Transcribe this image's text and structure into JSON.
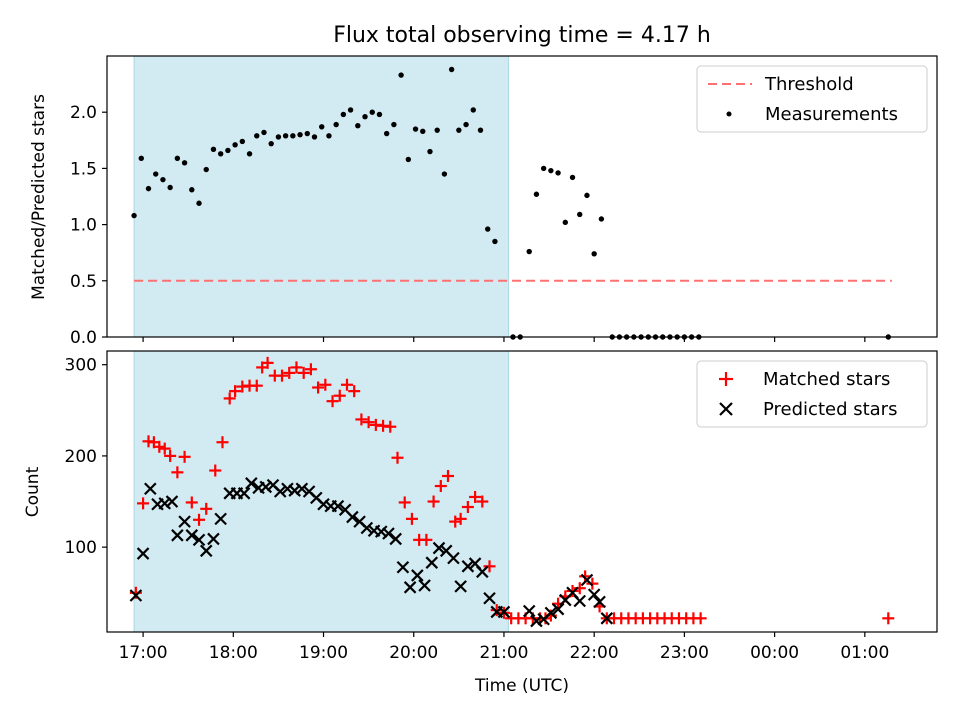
{
  "figure": {
    "title": "Flux total observing time = 4.17 h",
    "xlabel": "Time (UTC)"
  },
  "chart_data": [
    {
      "type": "scatter",
      "ylabel": "Matched/Predicted stars",
      "x_ticks": [
        "17:00",
        "18:00",
        "19:00",
        "20:00",
        "21:00",
        "22:00",
        "23:00",
        "00:00",
        "01:00"
      ],
      "y_ticks": [
        "0.0",
        "0.5",
        "1.0",
        "1.5",
        "2.0"
      ],
      "xlim": [
        16.6,
        25.8
      ],
      "ylim": [
        0,
        2.5
      ],
      "shaded_region": [
        16.9,
        21.05
      ],
      "colors": {
        "threshold": "#ff7070",
        "measurements": "#000000",
        "shade": "#add8e6"
      },
      "legend": {
        "position": "top-right",
        "entries": [
          "Threshold",
          "Measurements"
        ]
      },
      "threshold": {
        "name": "Threshold",
        "value": 0.5,
        "x_range": [
          16.9,
          25.3
        ]
      },
      "series": [
        {
          "name": "Measurements",
          "points": [
            [
              16.9,
              1.08
            ],
            [
              16.98,
              1.59
            ],
            [
              17.06,
              1.32
            ],
            [
              17.14,
              1.45
            ],
            [
              17.22,
              1.4
            ],
            [
              17.3,
              1.33
            ],
            [
              17.38,
              1.59
            ],
            [
              17.46,
              1.55
            ],
            [
              17.54,
              1.31
            ],
            [
              17.62,
              1.19
            ],
            [
              17.7,
              1.49
            ],
            [
              17.78,
              1.67
            ],
            [
              17.86,
              1.63
            ],
            [
              17.94,
              1.66
            ],
            [
              18.02,
              1.71
            ],
            [
              18.1,
              1.74
            ],
            [
              18.18,
              1.63
            ],
            [
              18.26,
              1.79
            ],
            [
              18.34,
              1.82
            ],
            [
              18.42,
              1.72
            ],
            [
              18.5,
              1.78
            ],
            [
              18.58,
              1.79
            ],
            [
              18.66,
              1.79
            ],
            [
              18.74,
              1.8
            ],
            [
              18.82,
              1.81
            ],
            [
              18.9,
              1.78
            ],
            [
              18.98,
              1.87
            ],
            [
              19.06,
              1.79
            ],
            [
              19.14,
              1.89
            ],
            [
              19.22,
              1.98
            ],
            [
              19.3,
              2.02
            ],
            [
              19.38,
              1.88
            ],
            [
              19.46,
              1.96
            ],
            [
              19.54,
              2.0
            ],
            [
              19.62,
              1.98
            ],
            [
              19.7,
              1.81
            ],
            [
              19.78,
              1.89
            ],
            [
              19.86,
              2.33
            ],
            [
              19.94,
              1.58
            ],
            [
              20.02,
              1.85
            ],
            [
              20.1,
              1.83
            ],
            [
              20.18,
              1.65
            ],
            [
              20.26,
              1.84
            ],
            [
              20.34,
              1.45
            ],
            [
              20.42,
              2.38
            ],
            [
              20.5,
              1.84
            ],
            [
              20.58,
              1.89
            ],
            [
              20.66,
              2.02
            ],
            [
              20.74,
              1.84
            ],
            [
              20.82,
              0.96
            ],
            [
              20.9,
              0.85
            ],
            [
              21.1,
              0.0
            ],
            [
              21.18,
              0.0
            ],
            [
              21.28,
              0.76
            ],
            [
              21.36,
              1.27
            ],
            [
              21.44,
              1.5
            ],
            [
              21.52,
              1.48
            ],
            [
              21.6,
              1.46
            ],
            [
              21.68,
              1.02
            ],
            [
              21.76,
              1.42
            ],
            [
              21.84,
              1.09
            ],
            [
              21.92,
              1.26
            ],
            [
              22.0,
              0.74
            ],
            [
              22.08,
              1.05
            ],
            [
              22.2,
              0.0
            ],
            [
              22.28,
              0.0
            ],
            [
              22.36,
              0.0
            ],
            [
              22.44,
              0.0
            ],
            [
              22.52,
              0.0
            ],
            [
              22.6,
              0.0
            ],
            [
              22.68,
              0.0
            ],
            [
              22.76,
              0.0
            ],
            [
              22.84,
              0.0
            ],
            [
              22.92,
              0.0
            ],
            [
              23.0,
              0.0
            ],
            [
              23.08,
              0.0
            ],
            [
              23.16,
              0.0
            ],
            [
              25.26,
              0.0
            ]
          ]
        }
      ]
    },
    {
      "type": "scatter",
      "ylabel": "Count",
      "x_ticks": [
        "17:00",
        "18:00",
        "19:00",
        "20:00",
        "21:00",
        "22:00",
        "23:00",
        "00:00",
        "01:00"
      ],
      "y_ticks": [
        "100",
        "200",
        "300"
      ],
      "xlim": [
        16.6,
        25.8
      ],
      "ylim": [
        7,
        315
      ],
      "shaded_region": [
        16.9,
        21.05
      ],
      "colors": {
        "matched": "#ff0000",
        "predicted": "#000000",
        "shade": "#add8e6"
      },
      "legend": {
        "position": "top-right",
        "entries": [
          "Matched stars",
          "Predicted stars"
        ]
      },
      "series": [
        {
          "name": "Matched stars",
          "marker": "plus",
          "points": [
            [
              16.92,
              50
            ],
            [
              17.0,
              148
            ],
            [
              17.06,
              216
            ],
            [
              17.12,
              215
            ],
            [
              17.18,
              210
            ],
            [
              17.24,
              208
            ],
            [
              17.3,
              200
            ],
            [
              17.38,
              182
            ],
            [
              17.46,
              199
            ],
            [
              17.54,
              149
            ],
            [
              17.62,
              130
            ],
            [
              17.7,
              142
            ],
            [
              17.8,
              184
            ],
            [
              17.88,
              215
            ],
            [
              17.96,
              263
            ],
            [
              18.02,
              271
            ],
            [
              18.1,
              276
            ],
            [
              18.18,
              277
            ],
            [
              18.26,
              277
            ],
            [
              18.32,
              297
            ],
            [
              18.38,
              302
            ],
            [
              18.46,
              288
            ],
            [
              18.54,
              288
            ],
            [
              18.62,
              291
            ],
            [
              18.7,
              297
            ],
            [
              18.78,
              291
            ],
            [
              18.86,
              295
            ],
            [
              18.94,
              275
            ],
            [
              19.02,
              278
            ],
            [
              19.1,
              260
            ],
            [
              19.18,
              266
            ],
            [
              19.26,
              278
            ],
            [
              19.34,
              271
            ],
            [
              19.42,
              240
            ],
            [
              19.5,
              237
            ],
            [
              19.58,
              234
            ],
            [
              19.66,
              233
            ],
            [
              19.74,
              232
            ],
            [
              19.82,
              198
            ],
            [
              19.9,
              149
            ],
            [
              19.98,
              131
            ],
            [
              20.06,
              108
            ],
            [
              20.14,
              108
            ],
            [
              20.22,
              150
            ],
            [
              20.3,
              167
            ],
            [
              20.38,
              178
            ],
            [
              20.46,
              128
            ],
            [
              20.52,
              131
            ],
            [
              20.6,
              144
            ],
            [
              20.68,
              155
            ],
            [
              20.76,
              150
            ],
            [
              20.84,
              79
            ],
            [
              20.92,
              31
            ],
            [
              21.0,
              28
            ],
            [
              21.08,
              22
            ],
            [
              21.16,
              22
            ],
            [
              21.24,
              22
            ],
            [
              21.32,
              22
            ],
            [
              21.4,
              22
            ],
            [
              21.46,
              22
            ],
            [
              21.52,
              25
            ],
            [
              21.6,
              38
            ],
            [
              21.68,
              46
            ],
            [
              21.76,
              52
            ],
            [
              21.84,
              55
            ],
            [
              21.9,
              68
            ],
            [
              21.98,
              60
            ],
            [
              22.06,
              35
            ],
            [
              22.14,
              22
            ],
            [
              22.22,
              22
            ],
            [
              22.3,
              22
            ],
            [
              22.38,
              22
            ],
            [
              22.46,
              22
            ],
            [
              22.54,
              22
            ],
            [
              22.62,
              22
            ],
            [
              22.7,
              22
            ],
            [
              22.78,
              22
            ],
            [
              22.86,
              22
            ],
            [
              22.94,
              22
            ],
            [
              23.02,
              22
            ],
            [
              23.1,
              22
            ],
            [
              23.18,
              22
            ],
            [
              25.26,
              22
            ]
          ]
        },
        {
          "name": "Predicted stars",
          "marker": "x",
          "points": [
            [
              16.92,
              47
            ],
            [
              17.0,
              93
            ],
            [
              17.08,
              164
            ],
            [
              17.16,
              147
            ],
            [
              17.24,
              148
            ],
            [
              17.32,
              150
            ],
            [
              17.38,
              113
            ],
            [
              17.46,
              128
            ],
            [
              17.54,
              113
            ],
            [
              17.62,
              108
            ],
            [
              17.7,
              96
            ],
            [
              17.78,
              109
            ],
            [
              17.86,
              131
            ],
            [
              17.96,
              159
            ],
            [
              18.04,
              159
            ],
            [
              18.12,
              159
            ],
            [
              18.2,
              170
            ],
            [
              18.28,
              165
            ],
            [
              18.36,
              166
            ],
            [
              18.44,
              168
            ],
            [
              18.52,
              161
            ],
            [
              18.6,
              164
            ],
            [
              18.68,
              162
            ],
            [
              18.76,
              164
            ],
            [
              18.84,
              161
            ],
            [
              18.92,
              154
            ],
            [
              19.0,
              147
            ],
            [
              19.08,
              145
            ],
            [
              19.16,
              145
            ],
            [
              19.24,
              141
            ],
            [
              19.32,
              133
            ],
            [
              19.4,
              128
            ],
            [
              19.48,
              121
            ],
            [
              19.56,
              118
            ],
            [
              19.64,
              117
            ],
            [
              19.72,
              115
            ],
            [
              19.8,
              109
            ],
            [
              19.88,
              78
            ],
            [
              19.96,
              56
            ],
            [
              20.04,
              69
            ],
            [
              20.12,
              58
            ],
            [
              20.2,
              83
            ],
            [
              20.28,
              99
            ],
            [
              20.36,
              96
            ],
            [
              20.44,
              88
            ],
            [
              20.52,
              57
            ],
            [
              20.6,
              79
            ],
            [
              20.68,
              82
            ],
            [
              20.76,
              73
            ],
            [
              20.84,
              44
            ],
            [
              20.92,
              29
            ],
            [
              21.0,
              29
            ],
            [
              21.28,
              30
            ],
            [
              21.36,
              19
            ],
            [
              21.44,
              21
            ],
            [
              21.52,
              28
            ],
            [
              21.6,
              32
            ],
            [
              21.68,
              42
            ],
            [
              21.76,
              50
            ],
            [
              21.84,
              41
            ],
            [
              21.92,
              64
            ],
            [
              22.0,
              48
            ],
            [
              22.06,
              40
            ],
            [
              22.14,
              22
            ]
          ]
        }
      ]
    }
  ]
}
